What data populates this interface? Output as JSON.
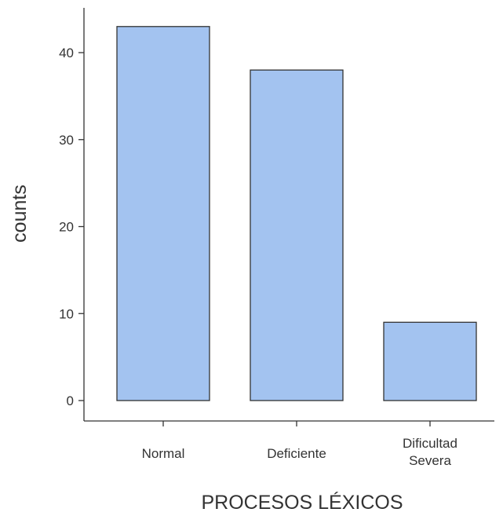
{
  "chart_data": {
    "type": "bar",
    "categories": [
      "Normal",
      "Deficiente",
      "Dificultad Severa"
    ],
    "category_label_lines": [
      [
        "Normal"
      ],
      [
        "Deficiente"
      ],
      [
        "Dificultad",
        "Severa"
      ]
    ],
    "values": [
      43,
      38,
      9
    ],
    "xlabel": "PROCESOS LÉXICOS",
    "ylabel": "counts",
    "yticks": [
      0,
      10,
      20,
      30,
      40
    ],
    "ylim": [
      0,
      45
    ],
    "grid": false,
    "bar_color": "#a3c3f0",
    "edge_color": "#333333"
  }
}
